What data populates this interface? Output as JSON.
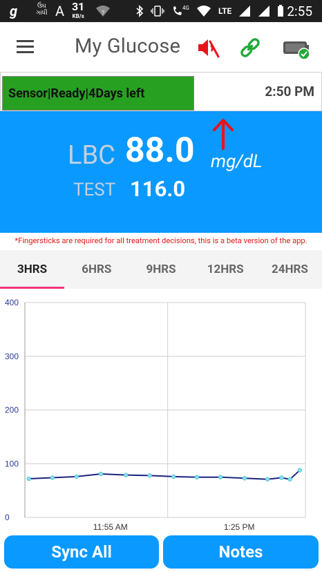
{
  "status_bar": {
    "left_glyph": "g",
    "small_text_1": "ઉંઘ",
    "small_text_2": "ગાંધી",
    "a_glyph": "A",
    "speed_value": "31",
    "speed_unit": "KB/s",
    "network_label": "4G",
    "lte_label": "LTE",
    "time": "2:55"
  },
  "toolbar": {
    "title": "My Glucose"
  },
  "sensor": {
    "status": "Sensor|Ready|4Days left",
    "time": "2:50 PM",
    "status_color": "#27a022"
  },
  "reading": {
    "lbc_label": "LBC",
    "lbc_value": "88.0",
    "unit": "mg/dL",
    "test_label": "TEST",
    "test_value": "116.0",
    "trend_color": "#e8141c",
    "panel_color": "#0a99ff"
  },
  "disclaimer": "*Fingersticks are required for all treatment decisions, this is a beta version of the app.",
  "tabs": [
    {
      "label": "3HRS",
      "active": true
    },
    {
      "label": "6HRS",
      "active": false
    },
    {
      "label": "9HRS",
      "active": false
    },
    {
      "label": "12HRS",
      "active": false
    },
    {
      "label": "24HRS",
      "active": false
    }
  ],
  "buttons": {
    "sync": "Sync All",
    "notes": "Notes"
  },
  "chart_data": {
    "type": "line",
    "title": "",
    "xlabel": "",
    "ylabel": "",
    "ylim": [
      0,
      400
    ],
    "yticks": [
      "0",
      "100",
      "200",
      "300",
      "400"
    ],
    "xticks": [
      "11:55 AM",
      "1:25 PM"
    ],
    "grid": true,
    "line_color": "#1a237e",
    "point_color": "#7fe3f5",
    "series": [
      {
        "values": [
          72,
          74,
          76,
          81,
          79,
          78,
          76,
          75,
          75,
          73,
          71,
          74,
          71,
          88
        ]
      }
    ]
  }
}
